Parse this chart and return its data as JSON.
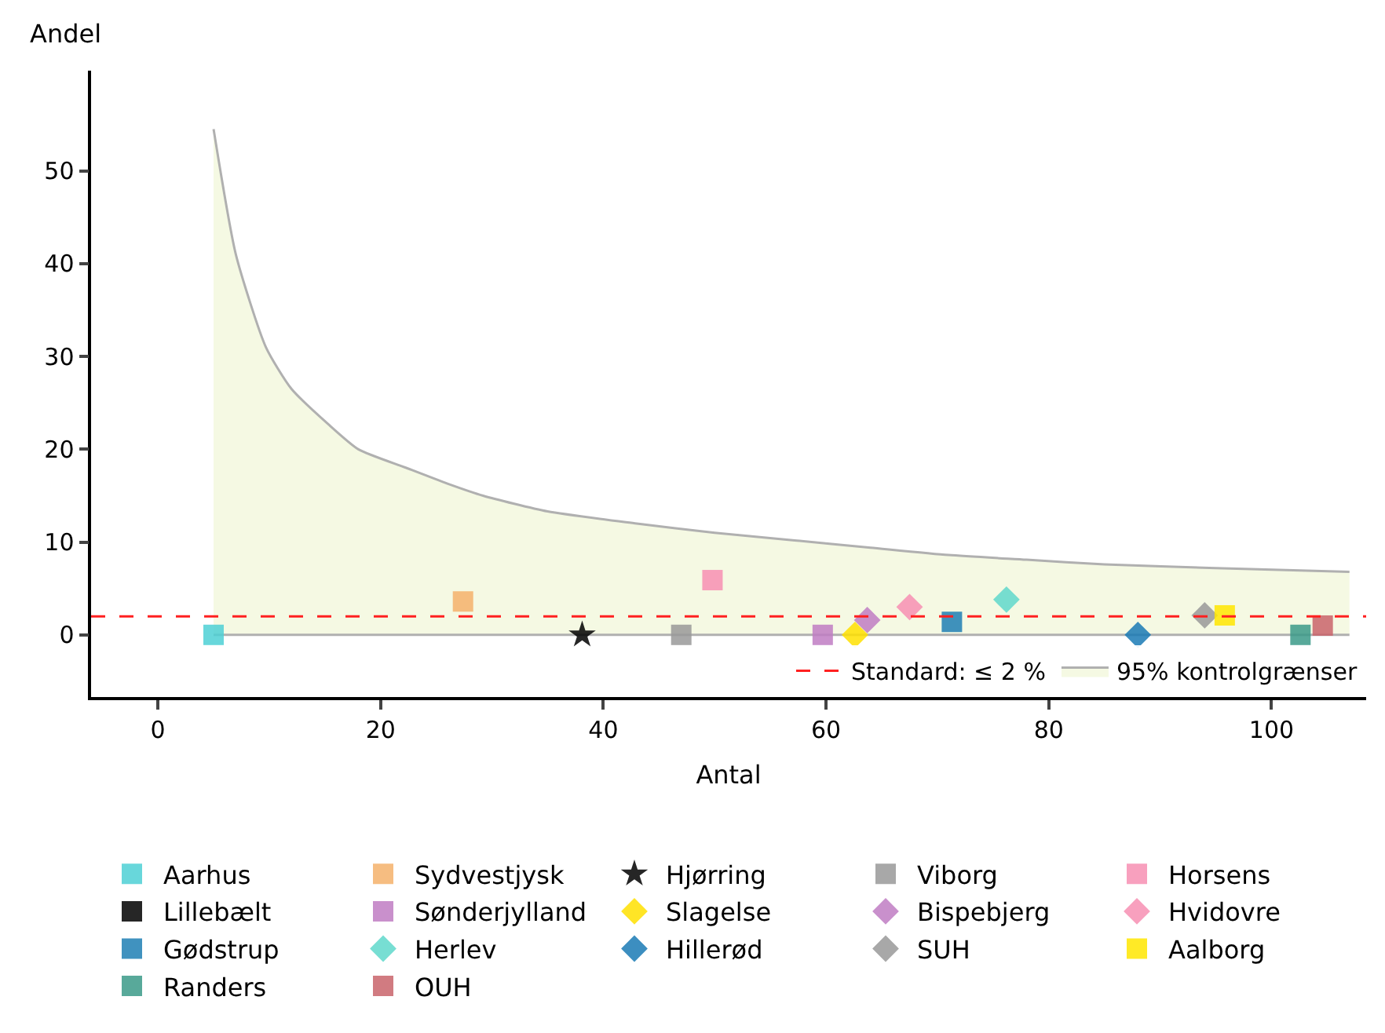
{
  "chart_data": {
    "type": "scatter",
    "xlabel": "Antal",
    "ylabel": "Andel",
    "xlim": [
      -6,
      108.5
    ],
    "xticks": [
      0,
      20,
      40,
      60,
      80,
      100
    ],
    "ylim": [
      -6.7,
      60.8
    ],
    "yticks": [
      0,
      10,
      20,
      30,
      40,
      50
    ],
    "legend": "bottom",
    "ref_lines": [
      {
        "axis": "y",
        "value": 2,
        "label": "Standard: ≤ 2 %",
        "color": "#ff2020",
        "line_style": "dashed"
      }
    ],
    "series": [
      {
        "type": "line",
        "color": "#b0b0b0",
        "x": [
          5,
          107
        ],
        "values": [
          0,
          0
        ],
        "marker": "none"
      },
      {
        "type": "area",
        "name": "95% kontrolgrænser",
        "color": "#b0b0b0",
        "marker": "none",
        "x": [
          5,
          7,
          9.7,
          12,
          15.3,
          18,
          22.3,
          26,
          29.2,
          35,
          43,
          50,
          57,
          64,
          71,
          78,
          85,
          95,
          107
        ],
        "values": [
          54.5,
          41,
          31,
          26.5,
          22.7,
          20,
          18,
          16.3,
          15,
          13.3,
          12,
          11,
          10.2,
          9.4,
          8.6,
          8.1,
          7.6,
          7.2,
          6.8
        ]
      },
      {
        "name": "Aarhus",
        "color": "#4dd0d5",
        "marker": "square",
        "x": [
          5
        ],
        "values": [
          0
        ]
      },
      {
        "name": "Lillebælt",
        "color": "#000000",
        "marker": "square",
        "x": [
          null
        ],
        "values": [
          null
        ]
      },
      {
        "name": "Gødstrup",
        "color": "#1f7fb4",
        "marker": "square",
        "x": [
          71.3
        ],
        "values": [
          1.4
        ]
      },
      {
        "name": "Randers",
        "color": "#3b9a88",
        "marker": "square",
        "x": [
          102.6
        ],
        "values": [
          0
        ]
      },
      {
        "name": "Sydvestjysk",
        "color": "#f5b26b",
        "marker": "square",
        "x": [
          27.4
        ],
        "values": [
          3.6
        ]
      },
      {
        "name": "Sønderjylland",
        "color": "#c07cc3",
        "marker": "square",
        "x": [
          59.7
        ],
        "values": [
          0
        ]
      },
      {
        "name": "Herlev",
        "color": "#5fd8cb",
        "marker": "diamond",
        "x": [
          76.2
        ],
        "values": [
          3.8
        ]
      },
      {
        "name": "OUH",
        "color": "#c9646b",
        "marker": "square",
        "x": [
          104.6
        ],
        "values": [
          1.0
        ]
      },
      {
        "name": "Hjørring",
        "color": "#000000",
        "marker": "star",
        "x": [
          38.1
        ],
        "values": [
          0
        ]
      },
      {
        "name": "Slagelse",
        "color": "#ffe000",
        "marker": "diamond",
        "x": [
          62.6
        ],
        "values": [
          0
        ]
      },
      {
        "name": "Hillerød",
        "color": "#1a7ab5",
        "marker": "diamond",
        "x": [
          88
        ],
        "values": [
          0
        ]
      },
      {
        "name": "Viborg",
        "color": "#999999",
        "marker": "square",
        "x": [
          47
        ],
        "values": [
          0
        ]
      },
      {
        "name": "Bispebjerg",
        "color": "#c07cc3",
        "marker": "diamond",
        "x": [
          63.7
        ],
        "values": [
          1.6
        ]
      },
      {
        "name": "SUH",
        "color": "#999999",
        "marker": "diamond",
        "x": [
          94
        ],
        "values": [
          2.1
        ]
      },
      {
        "name": "Horsens",
        "color": "#f78fb3",
        "marker": "square",
        "x": [
          49.8
        ],
        "values": [
          5.9
        ]
      },
      {
        "name": "Hvidovre",
        "color": "#f78fb3",
        "marker": "diamond",
        "x": [
          67.5
        ],
        "values": [
          3.0
        ]
      },
      {
        "name": "Aalborg",
        "color": "#ffe600",
        "marker": "square",
        "x": [
          95.8
        ],
        "values": [
          2.1
        ]
      }
    ]
  }
}
